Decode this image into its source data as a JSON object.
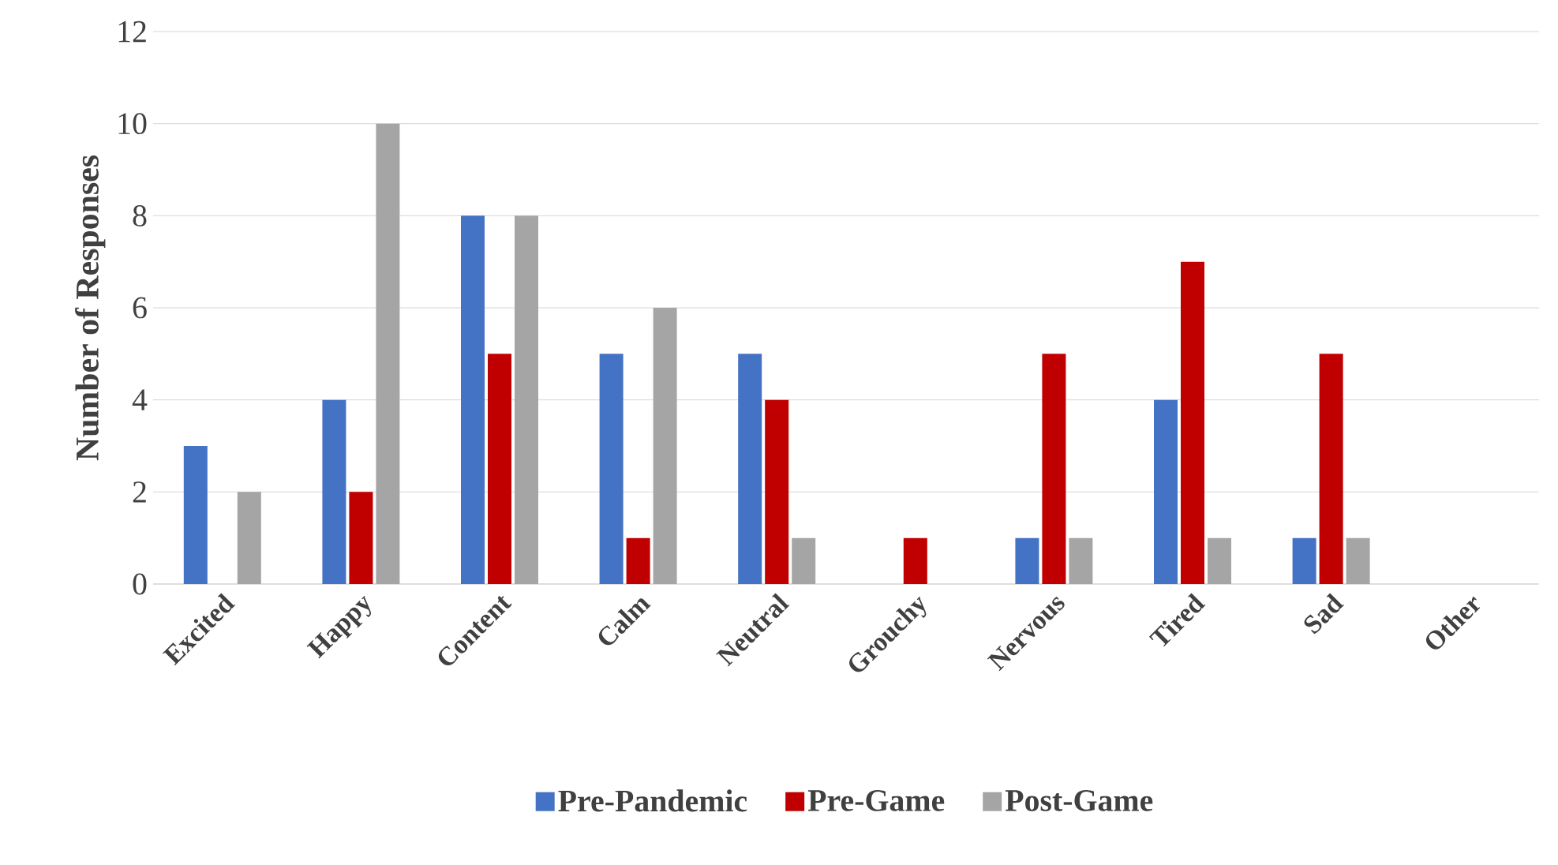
{
  "chart_data": {
    "type": "bar",
    "ylabel": "Number of Responses",
    "categories": [
      "Excited",
      "Happy",
      "Content",
      "Calm",
      "Neutral",
      "Grouchy",
      "Nervous",
      "Tired",
      "Sad",
      "Other"
    ],
    "series": [
      {
        "name": "Pre-Pandemic",
        "color": "#4472c4",
        "values": [
          3,
          4,
          8,
          5,
          5,
          0,
          1,
          4,
          1,
          0
        ]
      },
      {
        "name": "Pre-Game",
        "color": "#c00000",
        "values": [
          0,
          2,
          5,
          1,
          4,
          1,
          5,
          7,
          5,
          0
        ]
      },
      {
        "name": "Post-Game",
        "color": "#a5a5a5",
        "values": [
          2,
          10,
          8,
          6,
          1,
          0,
          1,
          1,
          1,
          0
        ]
      }
    ],
    "ylim": [
      0,
      12
    ],
    "yticks": [
      0,
      2,
      4,
      6,
      8,
      10,
      12
    ],
    "grid": "y",
    "legend": "bottom"
  }
}
